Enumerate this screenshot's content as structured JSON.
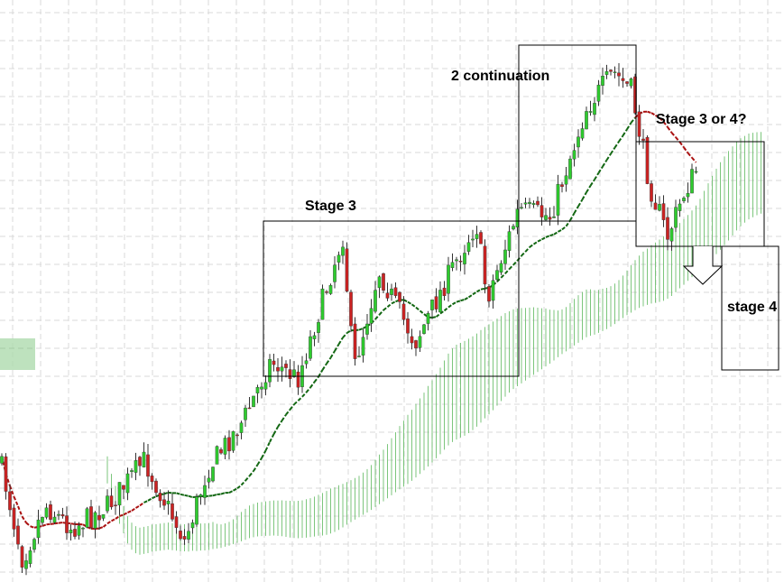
{
  "annotations": {
    "stage3": "Stage 3",
    "continuation": "2 continuation",
    "stage3or4": "Stage 3 or 4?",
    "stage4": "stage 4"
  }
}
